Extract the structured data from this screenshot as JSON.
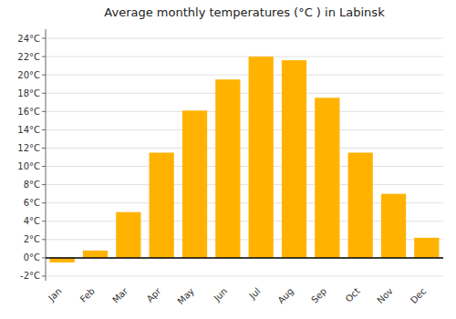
{
  "chart_data": {
    "type": "bar",
    "title": "Average monthly temperatures (°C ) in Labinsk",
    "categories": [
      "Jan",
      "Feb",
      "Mar",
      "Apr",
      "May",
      "Jun",
      "Jul",
      "Aug",
      "Sep",
      "Oct",
      "Nov",
      "Dec"
    ],
    "values": [
      -0.5,
      0.8,
      5.0,
      11.5,
      16.1,
      19.5,
      22.0,
      21.6,
      17.5,
      11.5,
      7.0,
      2.2
    ],
    "color": "#FFB300",
    "ylim": [
      -2.5,
      25
    ],
    "yticks": [
      {
        "value": -2,
        "label": "-2°C"
      },
      {
        "value": 0,
        "label": "0°C"
      },
      {
        "value": 2,
        "label": "2°C"
      },
      {
        "value": 4,
        "label": "4°C"
      },
      {
        "value": 6,
        "label": "6°C"
      },
      {
        "value": 8,
        "label": "8°C"
      },
      {
        "value": 10,
        "label": "10°C"
      },
      {
        "value": 12,
        "label": "12°C"
      },
      {
        "value": 14,
        "label": "14°C"
      },
      {
        "value": 16,
        "label": "16°C"
      },
      {
        "value": 18,
        "label": "18°C"
      },
      {
        "value": 20,
        "label": "20°C"
      },
      {
        "value": 22,
        "label": "22°C"
      },
      {
        "value": 24,
        "label": "24°C"
      }
    ],
    "grid": true
  }
}
